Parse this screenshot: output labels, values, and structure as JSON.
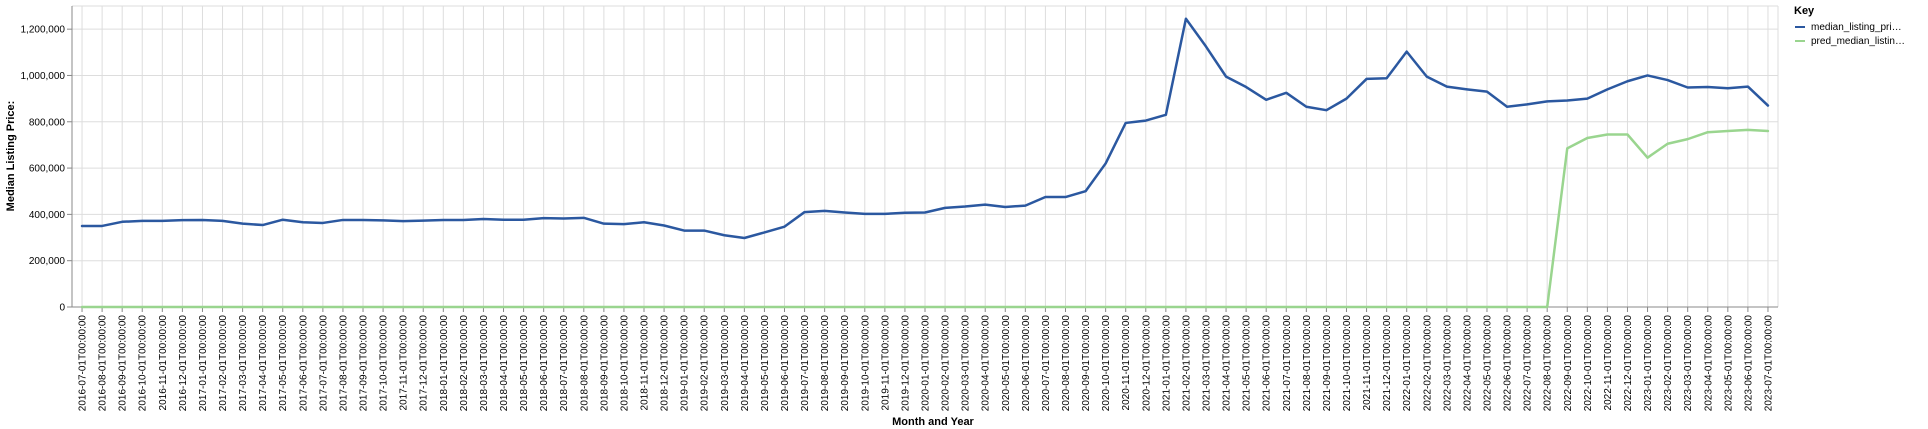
{
  "chart_data": {
    "type": "line",
    "xlabel": "Month and Year",
    "ylabel": "Median Listing Price:",
    "ylim": [
      0,
      1300000
    ],
    "y_ticks": [
      0,
      200000,
      400000,
      600000,
      800000,
      1000000,
      1200000
    ],
    "y_tick_labels": [
      "0",
      "200,000",
      "400,000",
      "600,000",
      "800,000",
      "1,000,000",
      "1,200,000"
    ],
    "grid": true,
    "legend": {
      "title": "Key",
      "placement": "top-right",
      "entries": [
        {
          "label": "median_listing_pri…",
          "color": "#2b58a0"
        },
        {
          "label": "pred_median_listin…",
          "color": "#9ad58f"
        }
      ]
    },
    "x": [
      "2016-07-01T00:00:00",
      "2016-08-01T00:00:00",
      "2016-09-01T00:00:00",
      "2016-10-01T00:00:00",
      "2016-11-01T00:00:00",
      "2016-12-01T00:00:00",
      "2017-01-01T00:00:00",
      "2017-02-01T00:00:00",
      "2017-03-01T00:00:00",
      "2017-04-01T00:00:00",
      "2017-05-01T00:00:00",
      "2017-06-01T00:00:00",
      "2017-07-01T00:00:00",
      "2017-08-01T00:00:00",
      "2017-09-01T00:00:00",
      "2017-10-01T00:00:00",
      "2017-11-01T00:00:00",
      "2017-12-01T00:00:00",
      "2018-01-01T00:00:00",
      "2018-02-01T00:00:00",
      "2018-03-01T00:00:00",
      "2018-04-01T00:00:00",
      "2018-05-01T00:00:00",
      "2018-06-01T00:00:00",
      "2018-07-01T00:00:00",
      "2018-08-01T00:00:00",
      "2018-09-01T00:00:00",
      "2018-10-01T00:00:00",
      "2018-11-01T00:00:00",
      "2018-12-01T00:00:00",
      "2019-01-01T00:00:00",
      "2019-02-01T00:00:00",
      "2019-03-01T00:00:00",
      "2019-04-01T00:00:00",
      "2019-05-01T00:00:00",
      "2019-06-01T00:00:00",
      "2019-07-01T00:00:00",
      "2019-08-01T00:00:00",
      "2019-09-01T00:00:00",
      "2019-10-01T00:00:00",
      "2019-11-01T00:00:00",
      "2019-12-01T00:00:00",
      "2020-01-01T00:00:00",
      "2020-02-01T00:00:00",
      "2020-03-01T00:00:00",
      "2020-04-01T00:00:00",
      "2020-05-01T00:00:00",
      "2020-06-01T00:00:00",
      "2020-07-01T00:00:00",
      "2020-08-01T00:00:00",
      "2020-09-01T00:00:00",
      "2020-10-01T00:00:00",
      "2020-11-01T00:00:00",
      "2020-12-01T00:00:00",
      "2021-01-01T00:00:00",
      "2021-02-01T00:00:00",
      "2021-03-01T00:00:00",
      "2021-04-01T00:00:00",
      "2021-05-01T00:00:00",
      "2021-06-01T00:00:00",
      "2021-07-01T00:00:00",
      "2021-08-01T00:00:00",
      "2021-09-01T00:00:00",
      "2021-10-01T00:00:00",
      "2021-11-01T00:00:00",
      "2021-12-01T00:00:00",
      "2022-01-01T00:00:00",
      "2022-02-01T00:00:00",
      "2022-03-01T00:00:00",
      "2022-04-01T00:00:00",
      "2022-05-01T00:00:00",
      "2022-06-01T00:00:00",
      "2022-07-01T00:00:00",
      "2022-08-01T00:00:00",
      "2022-09-01T00:00:00",
      "2022-10-01T00:00:00",
      "2022-11-01T00:00:00",
      "2022-12-01T00:00:00",
      "2023-01-01T00:00:00",
      "2023-02-01T00:00:00",
      "2023-03-01T00:00:00",
      "2023-04-01T00:00:00",
      "2023-05-01T00:00:00",
      "2023-06-01T00:00:00",
      "2023-07-01T00:00:00"
    ],
    "series": [
      {
        "name": "median_listing_pri…",
        "color": "#2b58a0",
        "values": [
          350000,
          350000,
          368000,
          372000,
          372000,
          375000,
          376000,
          372000,
          360000,
          354000,
          377000,
          366000,
          363000,
          376000,
          376000,
          374000,
          371000,
          373000,
          376000,
          376000,
          380000,
          377000,
          377000,
          384000,
          382000,
          385000,
          360000,
          358000,
          366000,
          352000,
          330000,
          330000,
          310000,
          298000,
          322000,
          347000,
          410000,
          415000,
          408000,
          402000,
          402000,
          407000,
          408000,
          428000,
          434000,
          442000,
          432000,
          438000,
          475000,
          475000,
          500000,
          620000,
          795000,
          805000,
          830000,
          1245000,
          1125000,
          995000,
          950000,
          895000,
          925000,
          865000,
          850000,
          900000,
          985000,
          988000,
          1103000,
          995000,
          952000,
          940000,
          930000,
          865000,
          875000,
          888000,
          892000,
          900000,
          940000,
          975000,
          1000000,
          980000,
          948000,
          950000,
          945000,
          952000,
          870000
        ]
      },
      {
        "name": "pred_median_listin…",
        "color": "#9ad58f",
        "values": [
          0,
          0,
          0,
          0,
          0,
          0,
          0,
          0,
          0,
          0,
          0,
          0,
          0,
          0,
          0,
          0,
          0,
          0,
          0,
          0,
          0,
          0,
          0,
          0,
          0,
          0,
          0,
          0,
          0,
          0,
          0,
          0,
          0,
          0,
          0,
          0,
          0,
          0,
          0,
          0,
          0,
          0,
          0,
          0,
          0,
          0,
          0,
          0,
          0,
          0,
          0,
          0,
          0,
          0,
          0,
          0,
          0,
          0,
          0,
          0,
          0,
          0,
          0,
          0,
          0,
          0,
          0,
          0,
          0,
          0,
          0,
          0,
          0,
          0,
          685000,
          730000,
          745000,
          745000,
          645000,
          705000,
          725000,
          755000,
          760000,
          765000,
          760000
        ]
      }
    ]
  }
}
